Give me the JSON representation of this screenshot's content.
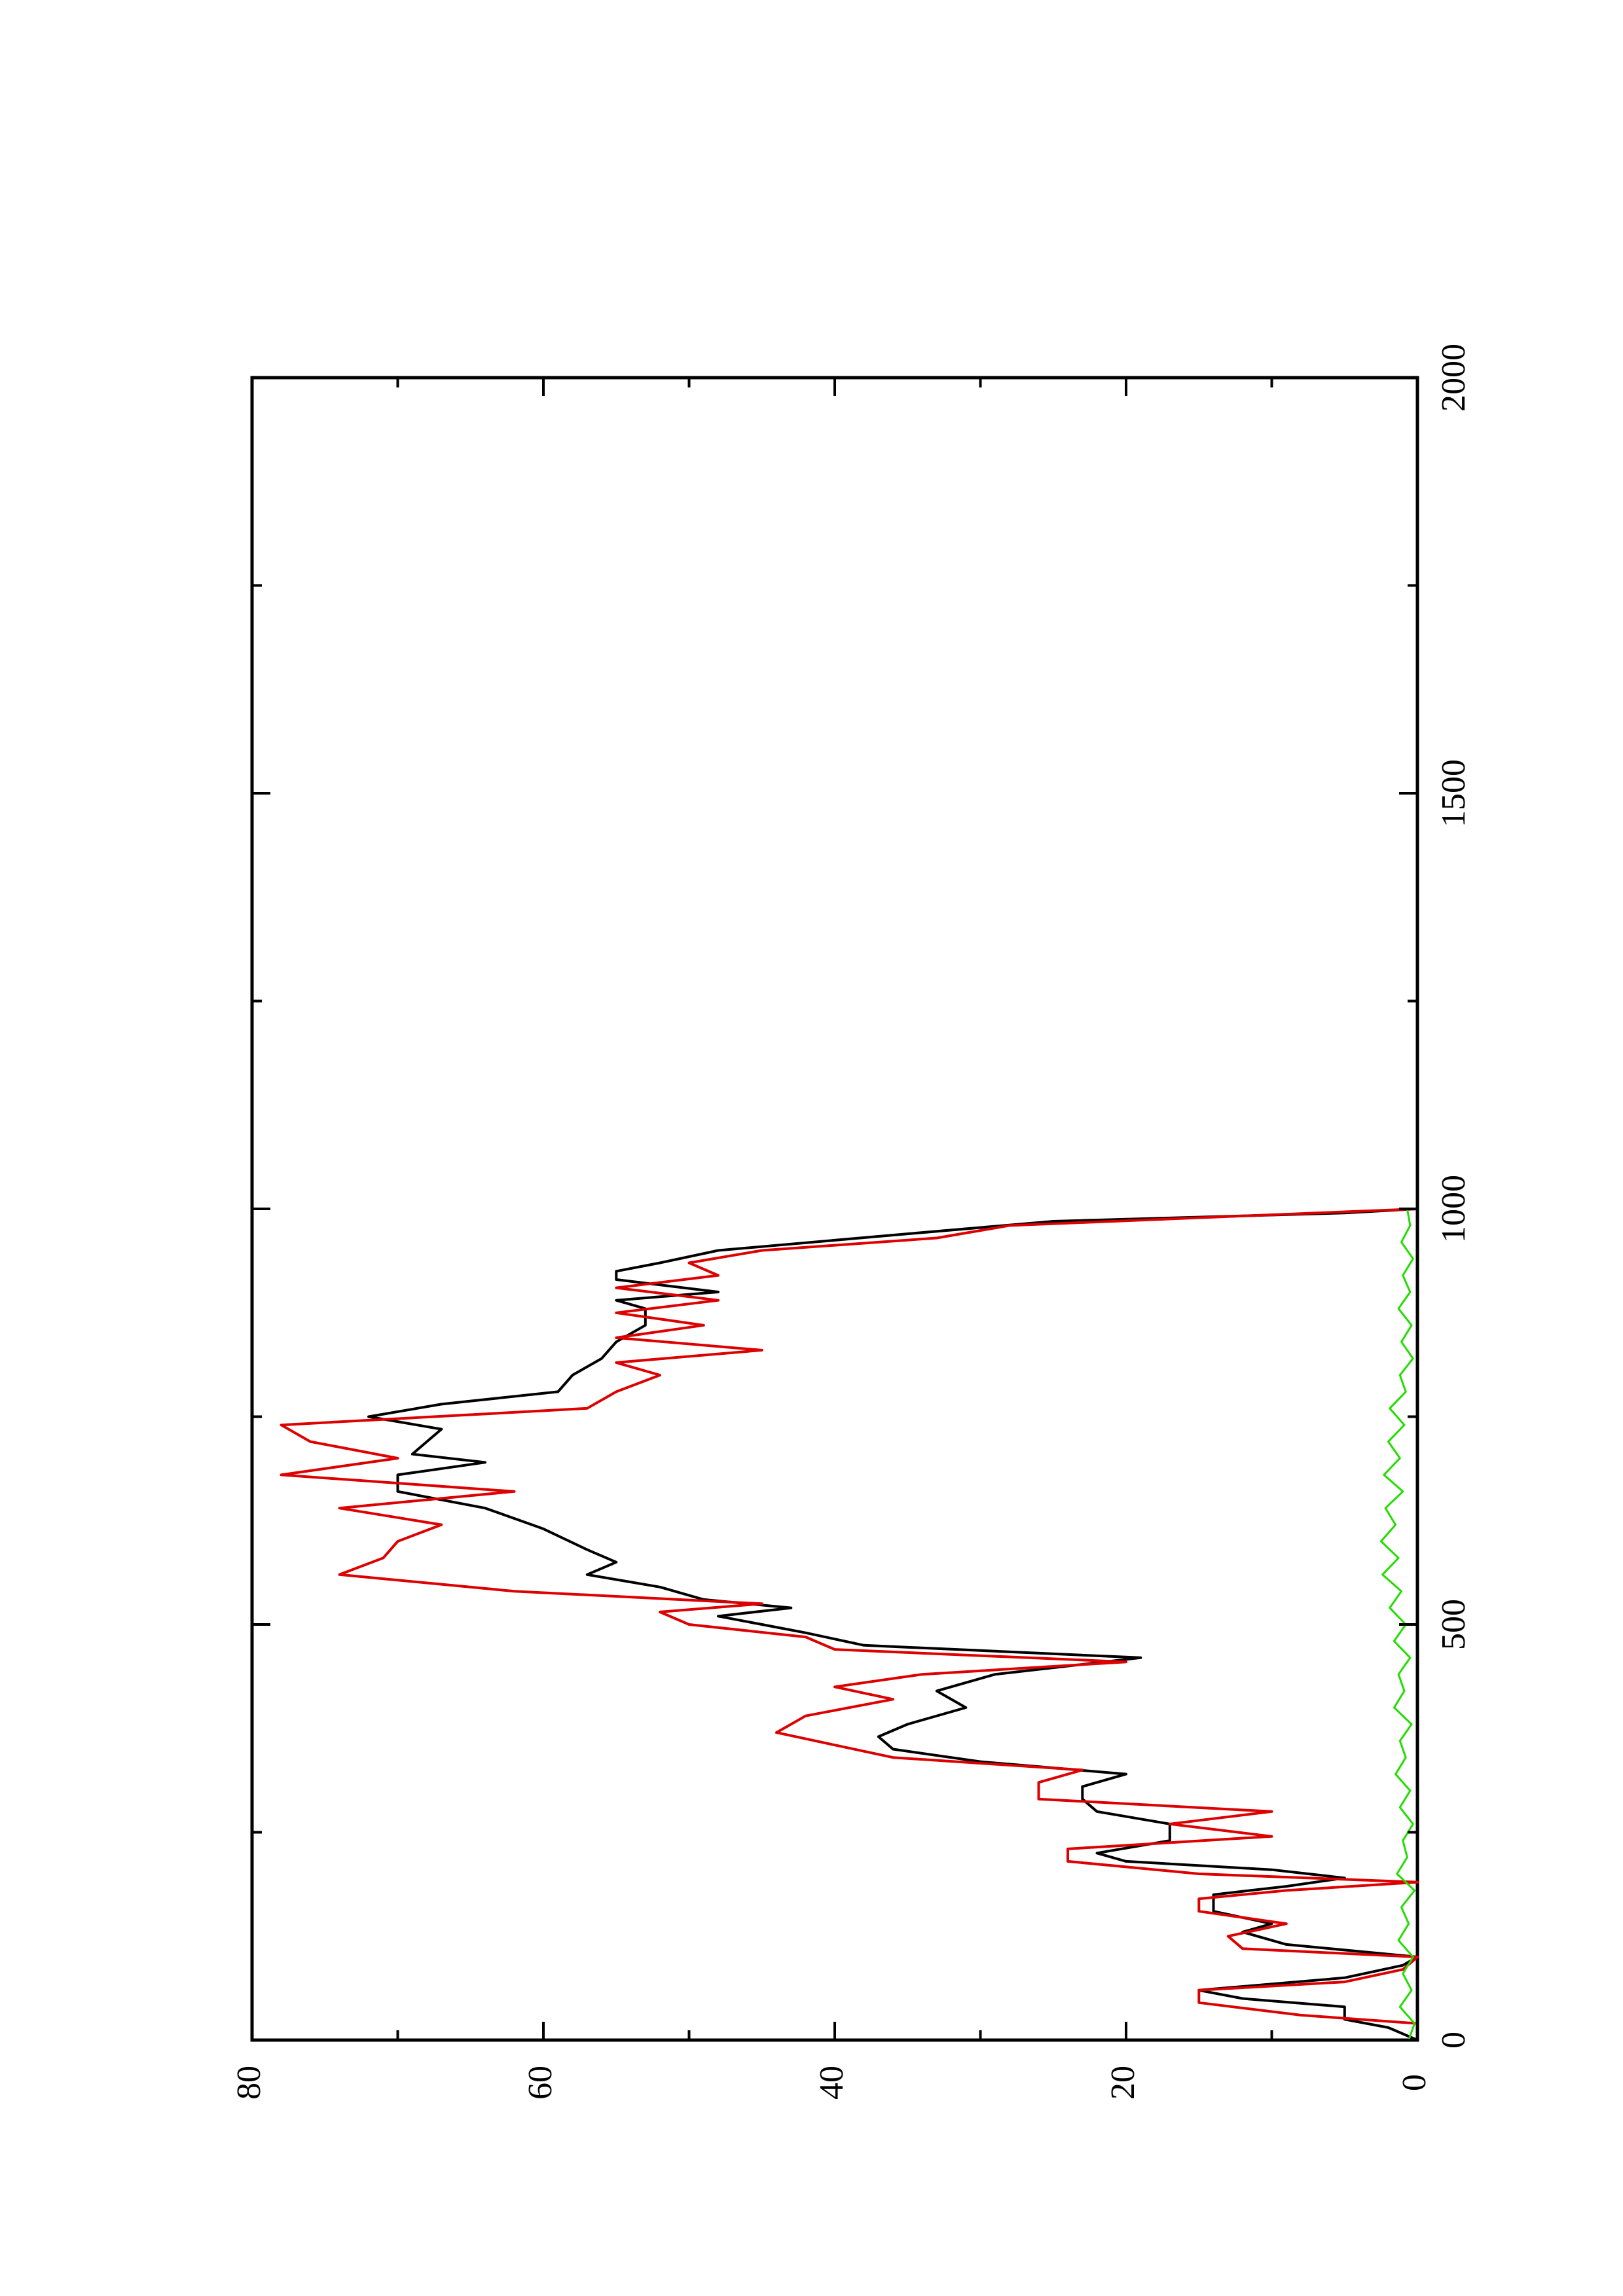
{
  "chart_data": {
    "type": "line",
    "orientation": "rotated-90-ccw",
    "title": "",
    "xlabel": "",
    "ylabel": "",
    "xlim": [
      0,
      2000
    ],
    "ylim": [
      0,
      80
    ],
    "x_major_ticks": [
      0,
      500,
      1000,
      1500,
      2000
    ],
    "x_minor_ticks": [
      250,
      750,
      1250,
      1750
    ],
    "y_major_ticks": [
      0,
      20,
      40,
      60,
      80
    ],
    "y_minor_ticks": [
      10,
      30,
      50,
      70
    ],
    "x_tick_labels": [
      "0",
      "500",
      "1000",
      "1500",
      "2000"
    ],
    "y_tick_labels": [
      "0",
      "20",
      "40",
      "60",
      "80"
    ],
    "grid": false,
    "legend": "none",
    "series": [
      {
        "color": "#000000",
        "style": "step-smooth",
        "points": [
          [
            0,
            0
          ],
          [
            15,
            2
          ],
          [
            25,
            5
          ],
          [
            40,
            5
          ],
          [
            50,
            12
          ],
          [
            60,
            15
          ],
          [
            75,
            5
          ],
          [
            90,
            1
          ],
          [
            100,
            0
          ],
          [
            115,
            9
          ],
          [
            130,
            12
          ],
          [
            140,
            10
          ],
          [
            155,
            14
          ],
          [
            175,
            14
          ],
          [
            185,
            9
          ],
          [
            195,
            5
          ],
          [
            205,
            10
          ],
          [
            215,
            20
          ],
          [
            225,
            22
          ],
          [
            240,
            17
          ],
          [
            260,
            17
          ],
          [
            275,
            22
          ],
          [
            290,
            23
          ],
          [
            305,
            23
          ],
          [
            320,
            20
          ],
          [
            335,
            30
          ],
          [
            350,
            36
          ],
          [
            365,
            37
          ],
          [
            380,
            35
          ],
          [
            400,
            31
          ],
          [
            420,
            33
          ],
          [
            440,
            29
          ],
          [
            460,
            19
          ],
          [
            475,
            38
          ],
          [
            490,
            42
          ],
          [
            500,
            45
          ],
          [
            510,
            48
          ],
          [
            520,
            43
          ],
          [
            530,
            49
          ],
          [
            545,
            52
          ],
          [
            560,
            57
          ],
          [
            575,
            55
          ],
          [
            590,
            57
          ],
          [
            615,
            60
          ],
          [
            640,
            64
          ],
          [
            660,
            70
          ],
          [
            680,
            70
          ],
          [
            695,
            64
          ],
          [
            705,
            69
          ],
          [
            720,
            68
          ],
          [
            735,
            67
          ],
          [
            750,
            72
          ],
          [
            765,
            67
          ],
          [
            780,
            59
          ],
          [
            800,
            58
          ],
          [
            820,
            56
          ],
          [
            840,
            55
          ],
          [
            860,
            53
          ],
          [
            880,
            53
          ],
          [
            890,
            55
          ],
          [
            900,
            48
          ],
          [
            915,
            55
          ],
          [
            925,
            55
          ],
          [
            935,
            52
          ],
          [
            950,
            48
          ],
          [
            970,
            35
          ],
          [
            985,
            25
          ],
          [
            995,
            5
          ],
          [
            1000,
            0
          ]
        ]
      },
      {
        "color": "#dd0000",
        "style": "step",
        "points": [
          [
            0,
            0
          ],
          [
            20,
            0
          ],
          [
            30,
            8
          ],
          [
            45,
            15
          ],
          [
            60,
            15
          ],
          [
            70,
            5
          ],
          [
            85,
            1
          ],
          [
            100,
            0
          ],
          [
            110,
            12
          ],
          [
            125,
            13
          ],
          [
            140,
            9
          ],
          [
            155,
            15
          ],
          [
            170,
            15
          ],
          [
            180,
            9
          ],
          [
            190,
            0
          ],
          [
            200,
            15
          ],
          [
            215,
            24
          ],
          [
            230,
            24
          ],
          [
            245,
            10
          ],
          [
            260,
            17
          ],
          [
            275,
            10
          ],
          [
            290,
            26
          ],
          [
            310,
            26
          ],
          [
            325,
            23
          ],
          [
            340,
            36
          ],
          [
            355,
            40
          ],
          [
            370,
            44
          ],
          [
            390,
            42
          ],
          [
            410,
            36
          ],
          [
            425,
            40
          ],
          [
            440,
            34
          ],
          [
            455,
            20
          ],
          [
            470,
            40
          ],
          [
            485,
            42
          ],
          [
            500,
            50
          ],
          [
            515,
            52
          ],
          [
            525,
            45
          ],
          [
            540,
            62
          ],
          [
            560,
            74
          ],
          [
            580,
            71
          ],
          [
            600,
            70
          ],
          [
            620,
            67
          ],
          [
            640,
            74
          ],
          [
            660,
            62
          ],
          [
            680,
            78
          ],
          [
            700,
            70
          ],
          [
            720,
            76
          ],
          [
            740,
            78
          ],
          [
            760,
            57
          ],
          [
            780,
            55
          ],
          [
            800,
            52
          ],
          [
            815,
            55
          ],
          [
            830,
            45
          ],
          [
            845,
            55
          ],
          [
            860,
            49
          ],
          [
            875,
            55
          ],
          [
            890,
            48
          ],
          [
            905,
            55
          ],
          [
            920,
            48
          ],
          [
            935,
            50
          ],
          [
            950,
            45
          ],
          [
            965,
            33
          ],
          [
            980,
            28
          ],
          [
            1000,
            0
          ]
        ]
      },
      {
        "color": "#22dd00",
        "style": "noise",
        "points": [
          [
            0,
            0.6
          ],
          [
            20,
            0.2
          ],
          [
            40,
            1.2
          ],
          [
            60,
            0.4
          ],
          [
            80,
            1.0
          ],
          [
            100,
            0.3
          ],
          [
            120,
            1.3
          ],
          [
            140,
            0.6
          ],
          [
            160,
            1.1
          ],
          [
            180,
            0.2
          ],
          [
            200,
            1.4
          ],
          [
            220,
            0.7
          ],
          [
            240,
            1.0
          ],
          [
            260,
            0.3
          ],
          [
            280,
            1.2
          ],
          [
            300,
            0.5
          ],
          [
            320,
            1.5
          ],
          [
            340,
            0.8
          ],
          [
            360,
            1.2
          ],
          [
            380,
            0.4
          ],
          [
            400,
            1.6
          ],
          [
            420,
            0.9
          ],
          [
            440,
            1.3
          ],
          [
            460,
            0.5
          ],
          [
            480,
            1.6
          ],
          [
            500,
            0.8
          ],
          [
            520,
            1.9
          ],
          [
            540,
            1.1
          ],
          [
            560,
            2.4
          ],
          [
            580,
            1.3
          ],
          [
            600,
            2.5
          ],
          [
            620,
            1.5
          ],
          [
            640,
            2.2
          ],
          [
            660,
            1.0
          ],
          [
            680,
            2.3
          ],
          [
            700,
            1.2
          ],
          [
            720,
            2.0
          ],
          [
            740,
            0.9
          ],
          [
            760,
            1.9
          ],
          [
            780,
            0.8
          ],
          [
            800,
            1.2
          ],
          [
            820,
            0.3
          ],
          [
            840,
            1.1
          ],
          [
            860,
            0.4
          ],
          [
            880,
            1.3
          ],
          [
            900,
            0.5
          ],
          [
            920,
            1.0
          ],
          [
            940,
            0.3
          ],
          [
            960,
            1.1
          ],
          [
            980,
            0.5
          ],
          [
            1000,
            0.7
          ]
        ]
      }
    ]
  }
}
